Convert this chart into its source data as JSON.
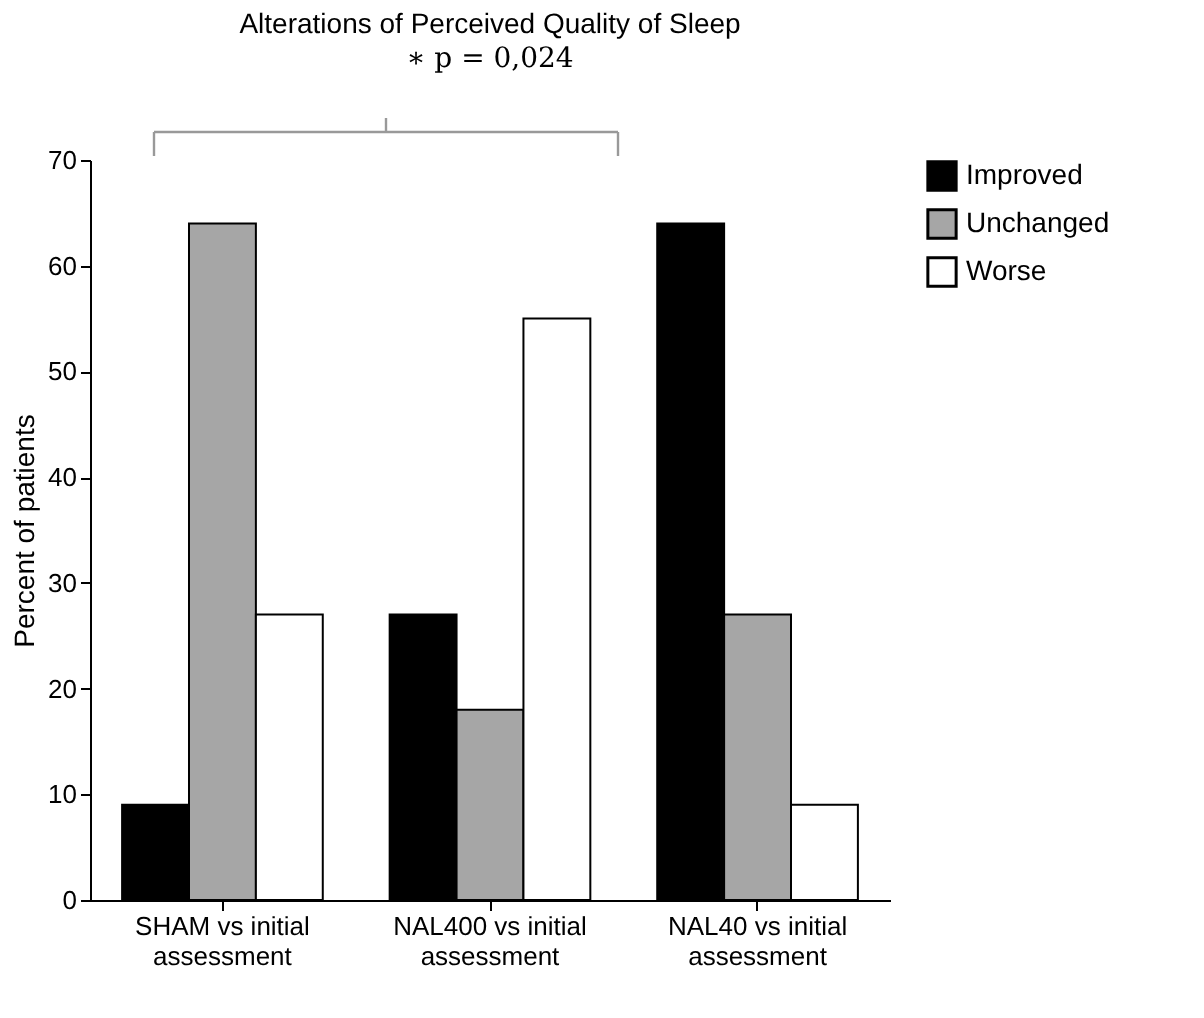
{
  "chart_data": {
    "type": "bar",
    "title": "Alterations of Perceived Quality of Sleep",
    "annotations": [
      "∗ p = 0,024"
    ],
    "ylabel": "Percent of patients",
    "categories": [
      "SHAM vs initial assessment",
      "NAL400 vs initial assessment",
      "NAL40 vs initial assessment"
    ],
    "series": [
      {
        "name": "Improved",
        "color": "#000000",
        "values": [
          9,
          27,
          64
        ]
      },
      {
        "name": "Unchanged",
        "color": "#a6a6a6",
        "values": [
          64,
          18,
          27
        ]
      },
      {
        "name": "Worse",
        "color": "#ffffff",
        "values": [
          27,
          55,
          9
        ]
      }
    ],
    "ylim": [
      0,
      70
    ],
    "yticks": [
      0,
      10,
      20,
      30,
      40,
      50,
      60,
      70
    ],
    "grid": false,
    "legend": "right"
  }
}
